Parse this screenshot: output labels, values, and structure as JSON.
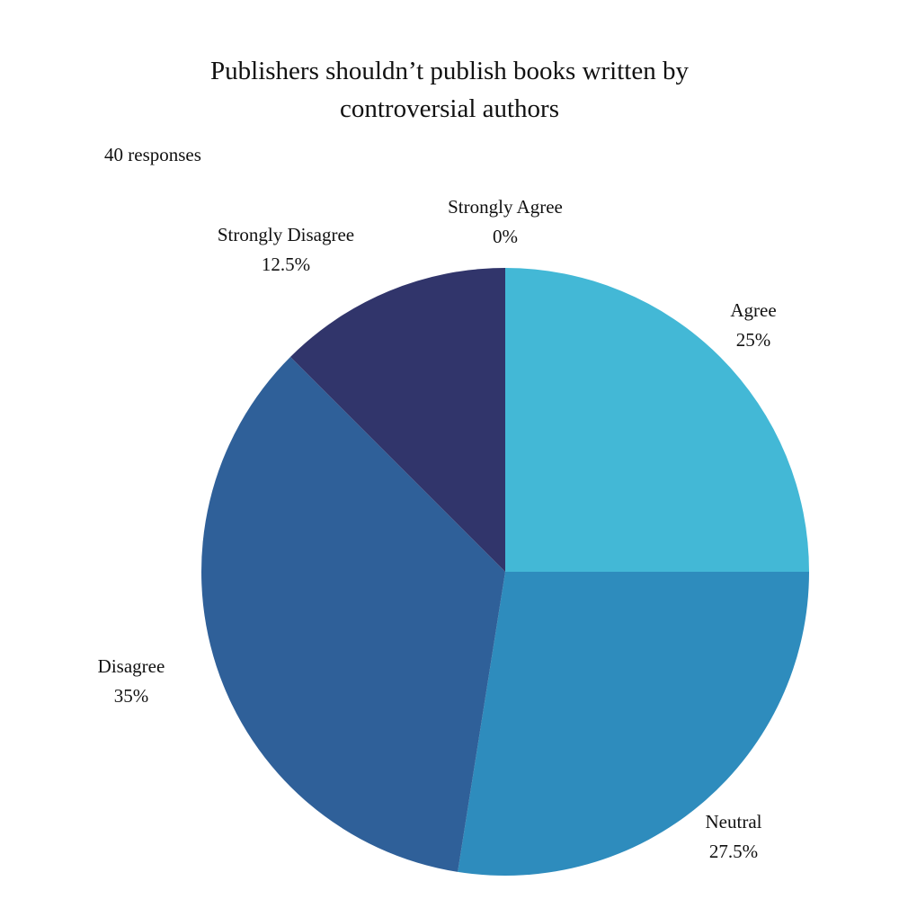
{
  "chart_data": {
    "type": "pie",
    "title": "Publishers shouldn’t publish books written by controversial authors",
    "title_lines": [
      "Publishers shouldn’t publish books written by",
      "controversial authors"
    ],
    "subtitle": "40 responses",
    "slices": [
      {
        "label": "Agree",
        "value": 25,
        "display": "25%",
        "color": "#43B8D6"
      },
      {
        "label": "Neutral",
        "value": 27.5,
        "display": "27.5%",
        "color": "#2E8CBD"
      },
      {
        "label": "Disagree",
        "value": 35,
        "display": "35%",
        "color": "#2F6099"
      },
      {
        "label": "Strongly Disagree",
        "value": 12.5,
        "display": "12.5%",
        "color": "#31356B"
      },
      {
        "label": "Strongly Agree",
        "value": 0,
        "display": "0%",
        "color": "#1F2A55"
      }
    ],
    "start_angle_deg": 0,
    "direction": "clockwise"
  }
}
